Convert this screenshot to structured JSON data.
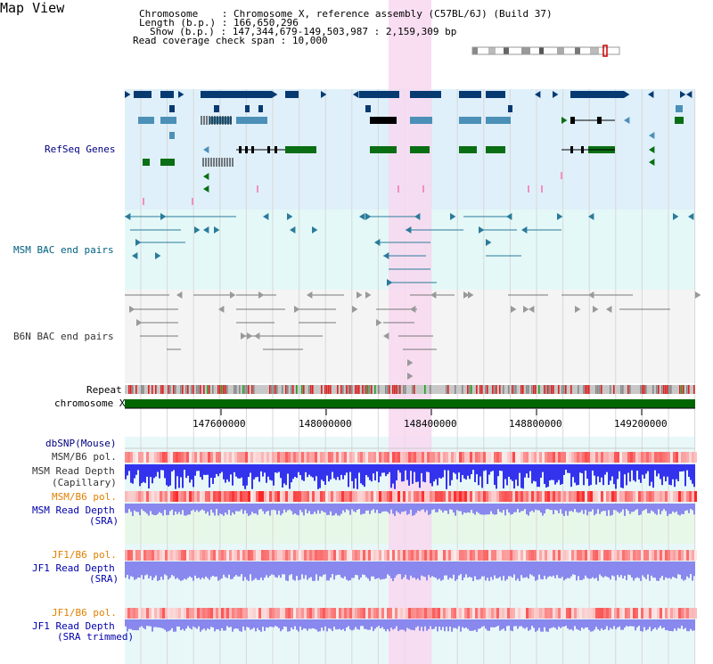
{
  "page": {
    "title": "Map View"
  },
  "info": {
    "chromosome_label": "Chromosome",
    "chromosome_value": "Chromosome X, reference assembly (C57BL/6J) (Build 37)",
    "length_label": "Length (b.p.)",
    "length_value": "166,650,296",
    "show_label": "Show (b.p.)",
    "show_value": "147,344,679-149,503,987 : 2,159,309 bp",
    "coverage_label": "Read coverage check span",
    "coverage_value": "10,000"
  },
  "tracks": {
    "refseq": "RefSeq Genes",
    "msm_bac": "MSM BAC end pairs",
    "b6n_bac": "B6N BAC end pairs",
    "repeat": "Repeat",
    "chromosome": "chromosome X",
    "dbsnp": "dbSNP(Mouse)",
    "msm_b6_pol_1": "MSM/B6 pol.",
    "msm_read_depth_cap_1": "MSM Read Depth",
    "msm_read_depth_cap_2": "(Capillary)",
    "msm_b6_pol_2": "MSM/B6 pol.",
    "msm_read_depth_sra_1": "MSM Read Depth",
    "msm_read_depth_sra_2": "(SRA)",
    "jf1_b6_pol_1": "JF1/B6 pol.",
    "jf1_read_depth_1": "JF1 Read Depth",
    "jf1_read_depth_2": "(SRA)",
    "jf1_b6_pol_2": "JF1/B6 pol.",
    "jf1_read_depth_trim_1": "JF1 Read Depth",
    "jf1_read_depth_trim_2": "(SRA trimmed)"
  },
  "ruler": {
    "ticks": [
      "147600000",
      "148000000",
      "148400000",
      "148800000",
      "149200000"
    ]
  },
  "colors": {
    "refseq_bg": "#dff0fa",
    "msm_bg": "#e4f8f8",
    "b6n_bg": "#f4f4f4",
    "highlight": "#f8d8f0",
    "gene_dark": "#083a72",
    "gene_mid": "#4c90b8",
    "gene_green": "#0a6e14",
    "chrom_bar": "#006600",
    "depth_blue": "#3333ee",
    "depth_light": "#8888ee"
  }
}
